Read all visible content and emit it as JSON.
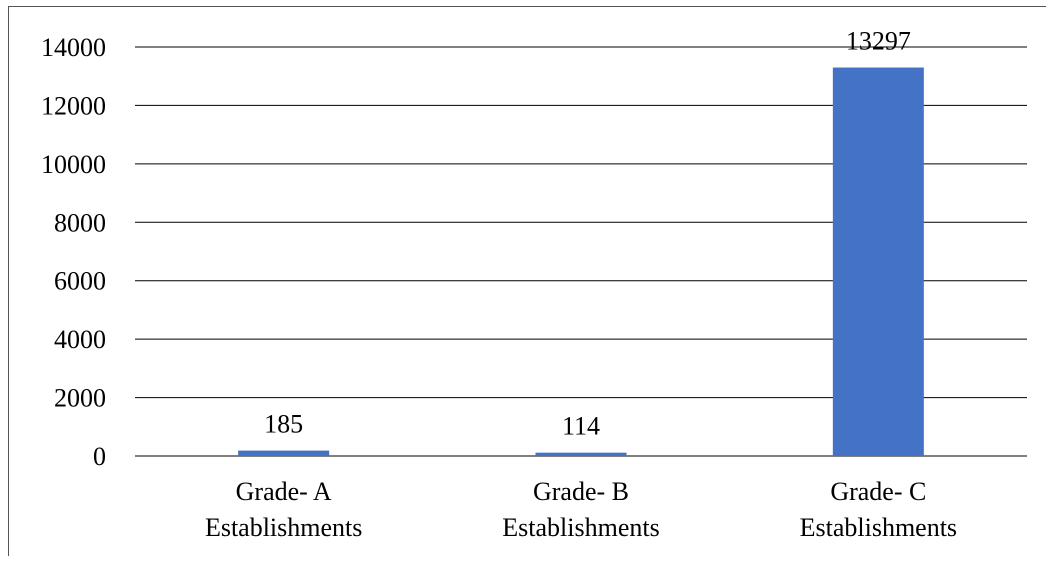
{
  "chart_data": {
    "type": "bar",
    "categories": [
      [
        "Grade- A",
        "Establishments"
      ],
      [
        "Grade- B",
        "Establishments"
      ],
      [
        "Grade- C",
        "Establishments"
      ]
    ],
    "values": [
      185,
      114,
      13297
    ],
    "data_labels": [
      "185",
      "114",
      "13297"
    ],
    "y_ticks": [
      0,
      2000,
      4000,
      6000,
      8000,
      10000,
      12000,
      14000
    ],
    "ylim": [
      0,
      14000
    ],
    "grid": true,
    "legend": "none",
    "title": "",
    "xlabel": "",
    "ylabel": ""
  },
  "colors": {
    "bar": "#4472C4",
    "grid": "#000000",
    "text": "#000000"
  }
}
